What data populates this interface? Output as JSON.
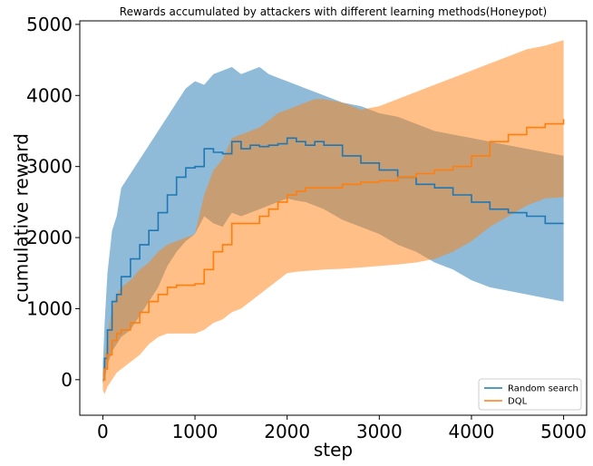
{
  "chart_data": {
    "type": "line",
    "title": "Rewards accumulated by attackers with different learning methods(Honeypot)",
    "xlabel": "step",
    "ylabel": "cumulative reward",
    "xlim": [
      -250,
      5250
    ],
    "ylim": [
      -500,
      5050
    ],
    "xticks": [
      "0",
      "1000",
      "2000",
      "3000",
      "4000",
      "5000"
    ],
    "yticks": [
      "0",
      "1000",
      "2000",
      "3000",
      "4000",
      "5000"
    ],
    "grid": false,
    "legend_position": "lower-right",
    "series": [
      {
        "name": "Random search",
        "color": "#1f77b4",
        "band_color": "#1f77b4",
        "x": [
          0,
          20,
          50,
          100,
          150,
          200,
          300,
          400,
          500,
          600,
          700,
          800,
          900,
          1000,
          1100,
          1200,
          1300,
          1400,
          1500,
          1600,
          1700,
          1800,
          1900,
          2000,
          2100,
          2200,
          2300,
          2400,
          2600,
          2800,
          3000,
          3200,
          3400,
          3600,
          3800,
          4000,
          4200,
          4400,
          4600,
          4800,
          5000
        ],
        "mean": [
          0,
          300,
          700,
          1100,
          1200,
          1450,
          1700,
          1900,
          2100,
          2350,
          2600,
          2850,
          2980,
          3000,
          3250,
          3200,
          3180,
          3350,
          3250,
          3300,
          3280,
          3300,
          3320,
          3400,
          3350,
          3300,
          3350,
          3300,
          3150,
          3050,
          2950,
          2850,
          2750,
          2700,
          2600,
          2500,
          2400,
          2350,
          2300,
          2200,
          2200
        ],
        "upper": [
          200,
          800,
          1500,
          2100,
          2300,
          2700,
          2900,
          3100,
          3300,
          3500,
          3700,
          3900,
          4100,
          4200,
          4150,
          4300,
          4350,
          4400,
          4300,
          4350,
          4400,
          4300,
          4250,
          4200,
          4150,
          4100,
          4050,
          4000,
          3900,
          3850,
          3750,
          3700,
          3600,
          3500,
          3450,
          3400,
          3350,
          3300,
          3250,
          3200,
          3150
        ],
        "lower": [
          -50,
          0,
          200,
          400,
          500,
          600,
          700,
          900,
          1100,
          1300,
          1600,
          1800,
          1950,
          2050,
          2300,
          2200,
          2150,
          2350,
          2300,
          2350,
          2400,
          2450,
          2500,
          2550,
          2520,
          2500,
          2450,
          2400,
          2250,
          2150,
          2050,
          1900,
          1800,
          1650,
          1550,
          1400,
          1300,
          1250,
          1200,
          1150,
          1100
        ]
      },
      {
        "name": "DQL",
        "color": "#ff7f0e",
        "band_color": "#ff7f0e",
        "x": [
          0,
          20,
          50,
          100,
          150,
          200,
          300,
          400,
          500,
          600,
          700,
          800,
          900,
          1000,
          1100,
          1200,
          1300,
          1400,
          1500,
          1600,
          1700,
          1800,
          1900,
          2000,
          2100,
          2200,
          2300,
          2400,
          2600,
          2800,
          3000,
          3200,
          3400,
          3600,
          3800,
          4000,
          4200,
          4400,
          4600,
          4800,
          5000
        ],
        "mean": [
          0,
          150,
          350,
          550,
          650,
          700,
          800,
          950,
          1100,
          1200,
          1300,
          1330,
          1330,
          1350,
          1550,
          1800,
          1900,
          2200,
          2200,
          2200,
          2300,
          2400,
          2500,
          2600,
          2650,
          2700,
          2700,
          2700,
          2750,
          2780,
          2800,
          2850,
          2900,
          2950,
          3000,
          3150,
          3350,
          3450,
          3550,
          3600,
          3670
        ],
        "upper": [
          100,
          300,
          600,
          1000,
          1200,
          1300,
          1400,
          1550,
          1650,
          1800,
          1900,
          1950,
          2000,
          2050,
          2600,
          2950,
          3100,
          3400,
          3450,
          3500,
          3550,
          3650,
          3750,
          3800,
          3850,
          3900,
          3950,
          3950,
          3900,
          3800,
          3850,
          3950,
          4050,
          4150,
          4250,
          4350,
          4450,
          4550,
          4650,
          4700,
          4780
        ],
        "lower": [
          -150,
          -200,
          -100,
          0,
          100,
          150,
          250,
          350,
          500,
          600,
          650,
          650,
          650,
          650,
          700,
          800,
          850,
          950,
          1000,
          1100,
          1200,
          1300,
          1400,
          1500,
          1520,
          1530,
          1540,
          1550,
          1560,
          1580,
          1600,
          1620,
          1650,
          1700,
          1800,
          1950,
          2150,
          2300,
          2450,
          2550,
          2570
        ]
      }
    ]
  }
}
